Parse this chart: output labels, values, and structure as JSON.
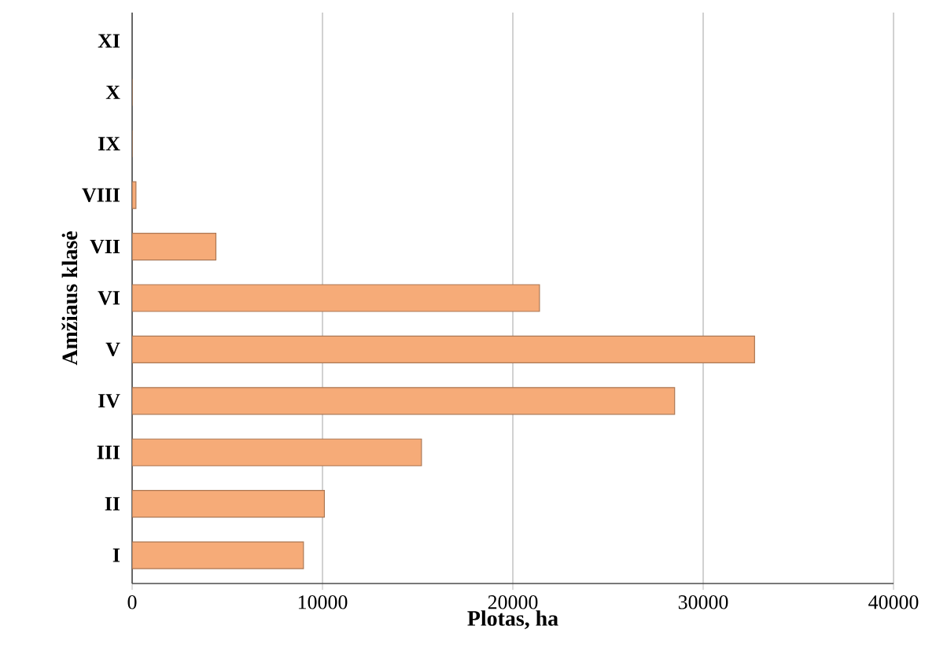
{
  "chart_data": {
    "type": "bar",
    "orientation": "horizontal",
    "xlabel": "Plotas, ha",
    "ylabel": "Amžiaus klasė",
    "categories": [
      "XI",
      "X",
      "IX",
      "VIII",
      "VII",
      "VI",
      "V",
      "IV",
      "III",
      "II",
      "I"
    ],
    "values": [
      null,
      0,
      0,
      200,
      4400,
      21400,
      32700,
      28500,
      15200,
      10100,
      9000
    ],
    "color": "#f6ab78",
    "xlim": [
      0,
      40000
    ],
    "xticks": [
      0,
      10000,
      20000,
      30000,
      40000
    ],
    "grid": "x"
  }
}
